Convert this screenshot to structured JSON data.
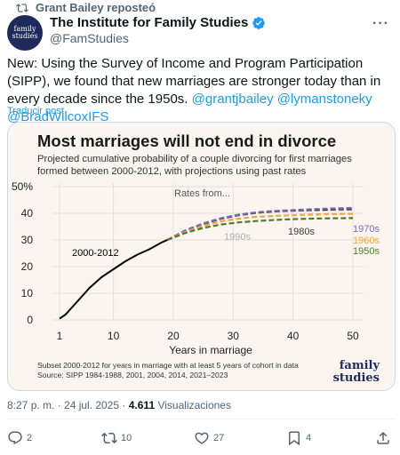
{
  "repost": {
    "text": "Grant Bailey reposteó"
  },
  "author": {
    "name": "The Institute for Family Studies",
    "handle": "@FamStudies",
    "avatar_line1": "family",
    "avatar_line2": "studies"
  },
  "tweet": {
    "text": "New: Using the Survey of Income and Program Participation (SIPP), we found that new marriages are stronger today than in every decade since the 1950s.",
    "mentions": "@grantjbailey @lymanstoneky @BradWilcoxIFS",
    "translate": "Traducir post"
  },
  "chart_data": {
    "type": "line",
    "title": "Most marriages will not end in divorce",
    "subtitle_line1": "Projected cumulative probability of a couple divorcing for first marriages",
    "subtitle_line2": "formed between 2000-2012, with projections using past rates",
    "ylabel": "",
    "xlabel": "Years in marriage",
    "xlim": [
      0,
      52
    ],
    "ylim": [
      0,
      50
    ],
    "xticks": [
      "1",
      "10",
      "20",
      "30",
      "40",
      "50"
    ],
    "yticks": [
      "0",
      "10",
      "20",
      "30",
      "40",
      "50%"
    ],
    "annotation": "Rates from...",
    "footnote_line1": "Subset 2000-2012 for years in marriage with at least 5 years of cohort in data",
    "footnote_line2": "Source: SIPP 1984-1988, 2001, 2004, 2014, 2021–2023",
    "logo_line1": "family",
    "logo_line2": "studies",
    "series": [
      {
        "name": "2000-2012",
        "color": "#000000",
        "dashed": false,
        "label_pos": "left",
        "x": [
          1,
          2,
          4,
          6,
          8,
          10,
          12,
          14,
          16,
          18,
          19
        ],
        "y": [
          0.5,
          2,
          7,
          12,
          16,
          19,
          22,
          24.5,
          26.5,
          29,
          30
        ]
      },
      {
        "name": "1990s",
        "color": "#b0b0b0",
        "dashed": true,
        "label_pos": "top",
        "x": [
          19,
          22,
          25,
          28,
          31,
          34,
          37,
          40,
          43,
          46,
          50
        ],
        "y": [
          30,
          33.5,
          36,
          38,
          39.5,
          40.3,
          40.8,
          41,
          41.1,
          41.2,
          41.3
        ]
      },
      {
        "name": "1980s",
        "color": "#3a3a3a",
        "dashed": true,
        "label_pos": "top",
        "x": [
          19,
          22,
          25,
          28,
          31,
          34,
          37,
          40,
          43,
          46,
          50
        ],
        "y": [
          30,
          33.5,
          36,
          38,
          39.3,
          40.2,
          40.7,
          41,
          41.2,
          41.4,
          41.6
        ]
      },
      {
        "name": "1970s",
        "color": "#7b6bb3",
        "dashed": true,
        "label_pos": "right",
        "x": [
          19,
          22,
          25,
          28,
          31,
          34,
          37,
          40,
          43,
          46,
          50
        ],
        "y": [
          30,
          33.6,
          36.2,
          38.2,
          39.5,
          40.4,
          40.9,
          41.2,
          41.5,
          41.8,
          42
        ]
      },
      {
        "name": "1960s",
        "color": "#f2a447",
        "dashed": true,
        "label_pos": "right",
        "x": [
          19,
          22,
          25,
          28,
          31,
          34,
          37,
          40,
          43,
          46,
          50
        ],
        "y": [
          30,
          33,
          35.3,
          37,
          38,
          38.7,
          39,
          39.3,
          39.5,
          39.7,
          39.8
        ]
      },
      {
        "name": "1950s",
        "color": "#4f7a2c",
        "dashed": true,
        "label_pos": "right",
        "x": [
          19,
          22,
          25,
          28,
          31,
          34,
          37,
          40,
          43,
          46,
          50
        ],
        "y": [
          30,
          32.6,
          34.5,
          35.8,
          36.6,
          37.1,
          37.5,
          37.8,
          38,
          38.1,
          38.2
        ]
      }
    ]
  },
  "meta": {
    "time": "8:27 p. m. · 24 jul. 2025 ·",
    "views_count": "4.611",
    "views_label": "Visualizaciones"
  },
  "actions": {
    "replies": "2",
    "reposts": "10",
    "likes": "27",
    "bookmarks": "4"
  }
}
